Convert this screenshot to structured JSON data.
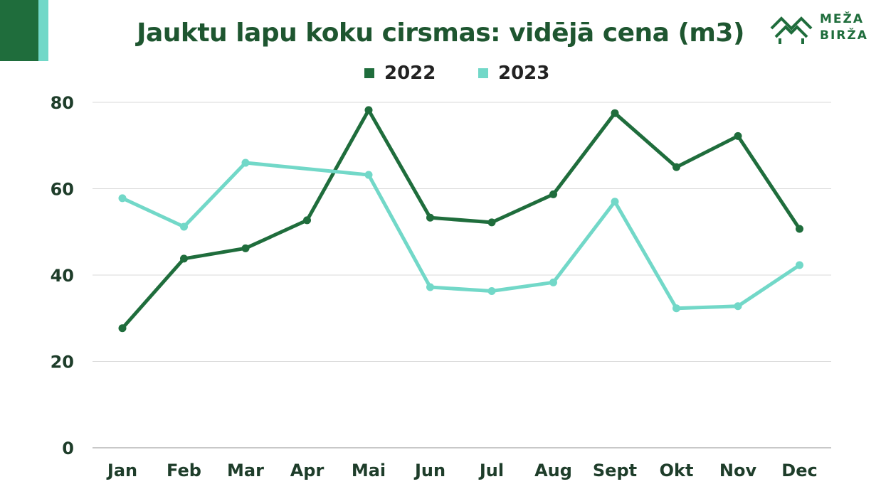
{
  "header": {
    "title": "Jauktu lapu koku cirsmas:  vidējā cena (m3)",
    "logo_line1": "MEŽA",
    "logo_line2": "BIRŽA"
  },
  "colors": {
    "dark_green": "#1f6d3c",
    "light_teal": "#72d8c8"
  },
  "chart_data": {
    "type": "line",
    "title": "Jauktu lapu koku cirsmas:  vidējā cena (m3)",
    "categories": [
      "Jan",
      "Feb",
      "Mar",
      "Apr",
      "Mai",
      "Jun",
      "Jul",
      "Aug",
      "Sept",
      "Okt",
      "Nov",
      "Dec"
    ],
    "series": [
      {
        "name": "2022",
        "color": "#1f6d3c",
        "values": [
          27.7,
          43.8,
          46.2,
          52.7,
          78.2,
          53.3,
          52.2,
          58.7,
          77.5,
          65.0,
          72.2,
          50.7
        ]
      },
      {
        "name": "2023",
        "color": "#72d8c8",
        "values": [
          57.8,
          51.2,
          66.0,
          null,
          63.2,
          37.2,
          36.3,
          38.3,
          57.0,
          32.3,
          32.8,
          42.3
        ]
      }
    ],
    "ylim": [
      0,
      80
    ],
    "yticks": [
      0,
      20,
      40,
      60,
      80
    ],
    "grid": true,
    "legend": "top-center"
  }
}
